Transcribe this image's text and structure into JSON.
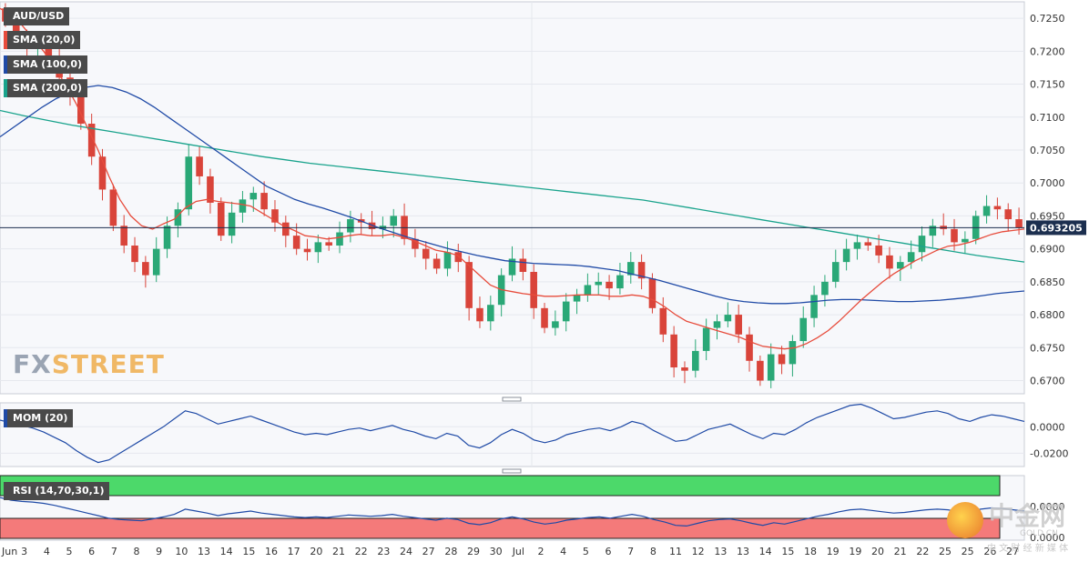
{
  "chart_data": [
    {
      "type": "candlestick",
      "symbol": "AUD/USD",
      "indicators": [
        {
          "name": "SMA (20,0)",
          "color": "#e74c3c"
        },
        {
          "name": "SMA (100,0)",
          "color": "#1f4aa6"
        },
        {
          "name": "SMA (200,0)",
          "color": "#19a38c"
        }
      ],
      "ylim": [
        0.668,
        0.7275
      ],
      "y_ticks": [
        "0.7250",
        "0.7200",
        "0.7150",
        "0.7100",
        "0.7050",
        "0.7000",
        "0.6950",
        "0.6900",
        "0.6850",
        "0.6800",
        "0.6750",
        "0.6700"
      ],
      "last_price": "0.693205",
      "close": [
        0.7245,
        0.722,
        0.7205,
        0.7212,
        0.719,
        0.716,
        0.7135,
        0.709,
        0.704,
        0.699,
        0.6935,
        0.6905,
        0.688,
        0.686,
        0.69,
        0.6935,
        0.696,
        0.704,
        0.701,
        0.697,
        0.692,
        0.6955,
        0.6975,
        0.6985,
        0.696,
        0.694,
        0.692,
        0.69,
        0.6895,
        0.691,
        0.6905,
        0.6925,
        0.6945,
        0.694,
        0.693,
        0.6935,
        0.695,
        0.6915,
        0.69,
        0.6885,
        0.687,
        0.6895,
        0.688,
        0.681,
        0.679,
        0.6815,
        0.686,
        0.6885,
        0.6865,
        0.681,
        0.678,
        0.679,
        0.682,
        0.683,
        0.6845,
        0.685,
        0.684,
        0.686,
        0.688,
        0.6855,
        0.681,
        0.677,
        0.672,
        0.6715,
        0.6745,
        0.678,
        0.679,
        0.68,
        0.677,
        0.673,
        0.67,
        0.674,
        0.6725,
        0.676,
        0.6795,
        0.683,
        0.685,
        0.688,
        0.69,
        0.691,
        0.6905,
        0.689,
        0.687,
        0.688,
        0.6895,
        0.692,
        0.6935,
        0.693,
        0.691,
        0.6915,
        0.695,
        0.6965,
        0.696,
        0.6945,
        0.6932
      ],
      "sma20": [
        0.7265,
        0.7255,
        0.724,
        0.722,
        0.72,
        0.7175,
        0.715,
        0.712,
        0.7085,
        0.705,
        0.701,
        0.6975,
        0.695,
        0.6935,
        0.693,
        0.6938,
        0.6945,
        0.6962,
        0.6972,
        0.6975,
        0.6972,
        0.697,
        0.6968,
        0.6965,
        0.6955,
        0.6945,
        0.6935,
        0.6928,
        0.692,
        0.6918,
        0.6915,
        0.6917,
        0.692,
        0.6922,
        0.692,
        0.692,
        0.6922,
        0.6918,
        0.6912,
        0.6905,
        0.6898,
        0.6895,
        0.689,
        0.6875,
        0.686,
        0.6845,
        0.6838,
        0.6835,
        0.6832,
        0.683,
        0.6828,
        0.6828,
        0.6829,
        0.683,
        0.683,
        0.683,
        0.6828,
        0.6828,
        0.683,
        0.6828,
        0.6822,
        0.6812,
        0.68,
        0.679,
        0.6785,
        0.678,
        0.6775,
        0.677,
        0.6765,
        0.6758,
        0.6752,
        0.675,
        0.6748,
        0.675,
        0.6756,
        0.6765,
        0.6776,
        0.679,
        0.6806,
        0.6822,
        0.6836,
        0.685,
        0.6862,
        0.6872,
        0.6882,
        0.689,
        0.6898,
        0.6904,
        0.6906,
        0.691,
        0.6916,
        0.6922,
        0.6926,
        0.6928,
        0.693
      ],
      "sma100": [
        0.707,
        0.7085,
        0.71,
        0.7115,
        0.7128,
        0.7138,
        0.7145,
        0.7148,
        0.7145,
        0.7138,
        0.7128,
        0.7115,
        0.71,
        0.7085,
        0.707,
        0.7055,
        0.704,
        0.7025,
        0.701,
        0.6995,
        0.6985,
        0.6975,
        0.6968,
        0.6962,
        0.6955,
        0.6948,
        0.694,
        0.6932,
        0.6925,
        0.6918,
        0.6912,
        0.6906,
        0.69,
        0.6895,
        0.689,
        0.6886,
        0.6882,
        0.688,
        0.6878,
        0.6877,
        0.6876,
        0.6875,
        0.6873,
        0.687,
        0.6867,
        0.6862,
        0.6857,
        0.6852,
        0.6846,
        0.684,
        0.6834,
        0.6828,
        0.6823,
        0.682,
        0.6818,
        0.6817,
        0.6817,
        0.6818,
        0.682,
        0.6822,
        0.6823,
        0.6823,
        0.6822,
        0.6821,
        0.682,
        0.682,
        0.6821,
        0.6822,
        0.6824,
        0.6826,
        0.6829,
        0.6832,
        0.6834,
        0.6836
      ],
      "sma200": [
        0.711,
        0.7102,
        0.7095,
        0.7088,
        0.7082,
        0.7076,
        0.707,
        0.7064,
        0.7058,
        0.7052,
        0.7046,
        0.704,
        0.7035,
        0.703,
        0.7026,
        0.7022,
        0.7018,
        0.7014,
        0.701,
        0.7006,
        0.7002,
        0.6998,
        0.6994,
        0.699,
        0.6986,
        0.6982,
        0.6978,
        0.6974,
        0.6968,
        0.6962,
        0.6956,
        0.695,
        0.6944,
        0.6938,
        0.6932,
        0.6926,
        0.692,
        0.6914,
        0.6908,
        0.6902,
        0.6896,
        0.689,
        0.6885,
        0.688
      ]
    },
    {
      "type": "line",
      "name": "MOM (20)",
      "color": "#1f4aa6",
      "ylim": [
        -0.03,
        0.018
      ],
      "y_ticks": [
        "0.0000",
        "-0.0200"
      ],
      "values": [
        0.005,
        0.003,
        0.001,
        -0.001,
        -0.004,
        -0.008,
        -0.012,
        -0.018,
        -0.023,
        -0.027,
        -0.025,
        -0.02,
        -0.015,
        -0.01,
        -0.005,
        0.0,
        0.006,
        0.012,
        0.01,
        0.006,
        0.002,
        0.004,
        0.006,
        0.008,
        0.005,
        0.002,
        -0.001,
        -0.004,
        -0.006,
        -0.005,
        -0.006,
        -0.004,
        -0.002,
        -0.001,
        -0.003,
        -0.001,
        0.001,
        -0.002,
        -0.004,
        -0.007,
        -0.009,
        -0.005,
        -0.007,
        -0.014,
        -0.016,
        -0.012,
        -0.006,
        -0.002,
        -0.005,
        -0.01,
        -0.012,
        -0.01,
        -0.006,
        -0.004,
        -0.002,
        -0.001,
        -0.003,
        0.0,
        0.004,
        0.002,
        -0.003,
        -0.007,
        -0.011,
        -0.01,
        -0.006,
        -0.002,
        0.0,
        0.002,
        -0.002,
        -0.006,
        -0.009,
        -0.005,
        -0.006,
        -0.002,
        0.003,
        0.007,
        0.01,
        0.013,
        0.016,
        0.017,
        0.014,
        0.01,
        0.006,
        0.007,
        0.009,
        0.011,
        0.012,
        0.01,
        0.006,
        0.004,
        0.007,
        0.009,
        0.008,
        0.006,
        0.004
      ]
    },
    {
      "type": "line",
      "name": "RSI (14,70,30,1)",
      "color": "#1f4aa6",
      "y_ticks": [
        "0.0000",
        "0.0000"
      ],
      "overbought_color": "#4cd96a",
      "oversold_color": "#f47a7a",
      "values": [
        66,
        62,
        60,
        59,
        57,
        54,
        50,
        46,
        42,
        38,
        34,
        32,
        31,
        30,
        33,
        36,
        40,
        48,
        45,
        42,
        38,
        41,
        43,
        45,
        42,
        40,
        38,
        36,
        35,
        36,
        35,
        37,
        39,
        38,
        37,
        38,
        40,
        37,
        35,
        33,
        31,
        34,
        32,
        26,
        24,
        27,
        33,
        36,
        33,
        28,
        25,
        27,
        31,
        33,
        35,
        36,
        34,
        37,
        40,
        37,
        32,
        28,
        23,
        22,
        26,
        30,
        32,
        33,
        30,
        26,
        23,
        27,
        25,
        29,
        33,
        37,
        40,
        44,
        47,
        48,
        46,
        44,
        42,
        43,
        45,
        47,
        48,
        47,
        44,
        45,
        48,
        50,
        49,
        47,
        45
      ]
    }
  ],
  "x_ticks": [
    "Jun",
    "3",
    "4",
    "5",
    "6",
    "7",
    "8",
    "9",
    "10",
    "13",
    "14",
    "15",
    "16",
    "17",
    "20",
    "21",
    "22",
    "23",
    "24",
    "27",
    "28",
    "29",
    "30",
    "Jul",
    "2",
    "4",
    "5",
    "6",
    "7",
    "8",
    "11",
    "12",
    "13",
    "13",
    "14",
    "15",
    "18",
    "19",
    "19",
    "20",
    "21",
    "22",
    "25",
    "25",
    "26",
    "27"
  ],
  "watermark": {
    "part1": "FX",
    "part2": "STREET"
  },
  "overlay_logo": {
    "text": "中金网",
    "sub": "GOLD.CN",
    "sub2": "中 文 财 经 新 媒 体"
  },
  "colors": {
    "bull": "#2aa877",
    "bear": "#d9443a",
    "grid": "#e6e8ee",
    "axis_text": "#333333",
    "price_line": "#1c2f4f",
    "last_price_bg": "#1c2f4f"
  }
}
